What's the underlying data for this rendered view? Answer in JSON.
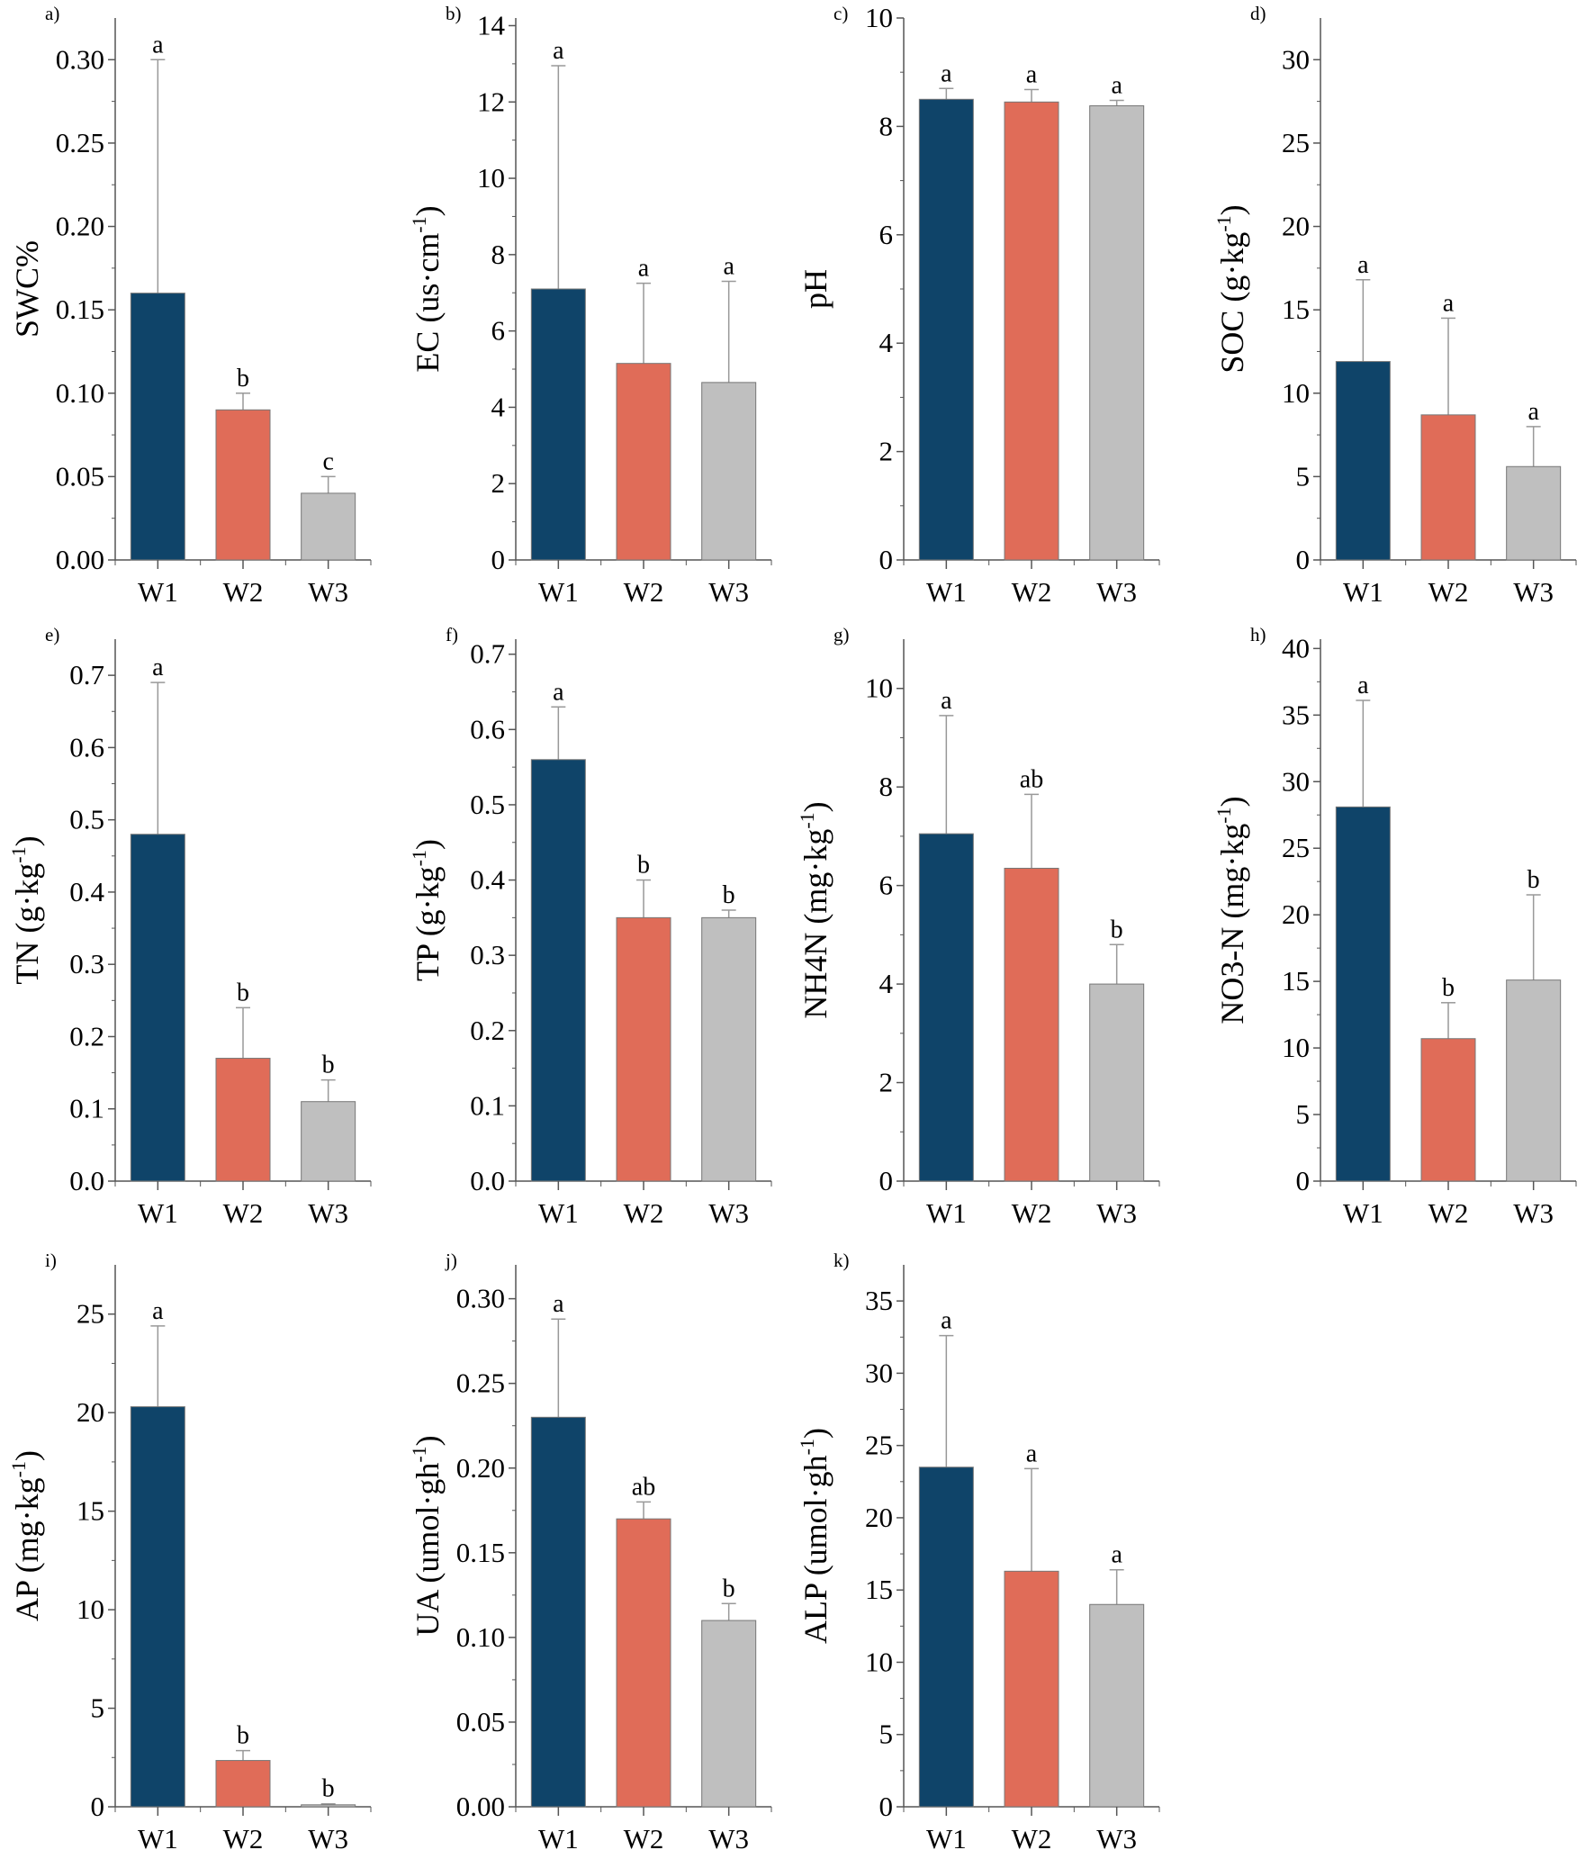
{
  "colors": {
    "W1": "#0f4469",
    "W2": "#e06c58",
    "W3": "#bfbfbf",
    "axis": "#555555",
    "error": "#999999"
  },
  "chart_data": [
    {
      "panel": "a)",
      "type": "bar",
      "categories": [
        "W1",
        "W2",
        "W3"
      ],
      "values": [
        0.16,
        0.09,
        0.04
      ],
      "error_upper": [
        0.3,
        0.1,
        0.05
      ],
      "letters": [
        "a",
        "b",
        "c"
      ],
      "ylabel": {
        "pre": "SWC%",
        "sup": "",
        "post": ""
      },
      "ylim": [
        0,
        0.325
      ],
      "ticks": [
        0.0,
        0.05,
        0.1,
        0.15,
        0.2,
        0.25,
        0.3
      ],
      "tick_labels": [
        "0.00",
        "0.05",
        "0.10",
        "0.15",
        "0.20",
        "0.25",
        "0.30"
      ]
    },
    {
      "panel": "b)",
      "type": "bar",
      "categories": [
        "W1",
        "W2",
        "W3"
      ],
      "values": [
        7.1,
        5.15,
        4.65
      ],
      "error_upper": [
        12.95,
        7.25,
        7.3
      ],
      "letters": [
        "a",
        "a",
        "a"
      ],
      "ylabel": {
        "pre": "EC (us·cm",
        "sup": "-1",
        "post": ")"
      },
      "ylim": [
        0,
        14.2
      ],
      "ticks": [
        0,
        2,
        4,
        6,
        8,
        10,
        12,
        14
      ],
      "tick_labels": [
        "0",
        "2",
        "4",
        "6",
        "8",
        "10",
        "12",
        "14"
      ]
    },
    {
      "panel": "c)",
      "type": "bar",
      "categories": [
        "W1",
        "W2",
        "W3"
      ],
      "values": [
        8.5,
        8.45,
        8.38
      ],
      "error_upper": [
        8.7,
        8.68,
        8.48
      ],
      "letters": [
        "a",
        "a",
        "a"
      ],
      "ylabel": {
        "pre": "pH",
        "sup": "",
        "post": ""
      },
      "ylim": [
        0,
        10
      ],
      "ticks": [
        0,
        2,
        4,
        6,
        8,
        10
      ],
      "tick_labels": [
        "0",
        "2",
        "4",
        "6",
        "8",
        "10"
      ]
    },
    {
      "panel": "d)",
      "type": "bar",
      "categories": [
        "W1",
        "W2",
        "W3"
      ],
      "values": [
        11.9,
        8.7,
        5.6
      ],
      "error_upper": [
        16.8,
        14.5,
        8.0
      ],
      "letters": [
        "a",
        "a",
        "a"
      ],
      "ylabel": {
        "pre": "SOC (g·kg",
        "sup": "-1",
        "post": ")"
      },
      "ylim": [
        0,
        32.5
      ],
      "ticks": [
        0,
        5,
        10,
        15,
        20,
        25,
        30
      ],
      "tick_labels": [
        "0",
        "5",
        "10",
        "15",
        "20",
        "25",
        "30"
      ]
    },
    {
      "panel": "e)",
      "type": "bar",
      "categories": [
        "W1",
        "W2",
        "W3"
      ],
      "values": [
        0.48,
        0.17,
        0.11
      ],
      "error_upper": [
        0.69,
        0.24,
        0.14
      ],
      "letters": [
        "a",
        "b",
        "b"
      ],
      "ylabel": {
        "pre": "TN (g·kg",
        "sup": "-1",
        "post": ")"
      },
      "ylim": [
        0,
        0.75
      ],
      "ticks": [
        0,
        0.1,
        0.2,
        0.3,
        0.4,
        0.5,
        0.6,
        0.7
      ],
      "tick_labels": [
        "0.0",
        "0.1",
        "0.2",
        "0.3",
        "0.4",
        "0.5",
        "0.6",
        "0.7"
      ]
    },
    {
      "panel": "f)",
      "type": "bar",
      "categories": [
        "W1",
        "W2",
        "W3"
      ],
      "values": [
        0.56,
        0.35,
        0.35
      ],
      "error_upper": [
        0.63,
        0.4,
        0.36
      ],
      "letters": [
        "a",
        "b",
        "b"
      ],
      "ylabel": {
        "pre": "TP (g·kg",
        "sup": "-1",
        "post": ")"
      },
      "ylim": [
        0,
        0.72
      ],
      "ticks": [
        0,
        0.1,
        0.2,
        0.3,
        0.4,
        0.5,
        0.6,
        0.7
      ],
      "tick_labels": [
        "0.0",
        "0.1",
        "0.2",
        "0.3",
        "0.4",
        "0.5",
        "0.6",
        "0.7"
      ]
    },
    {
      "panel": "g)",
      "type": "bar",
      "categories": [
        "W1",
        "W2",
        "W3"
      ],
      "values": [
        7.05,
        6.35,
        4.0
      ],
      "error_upper": [
        9.45,
        7.85,
        4.8
      ],
      "letters": [
        "a",
        "ab",
        "b"
      ],
      "ylabel": {
        "pre": "NH4N (mg·kg",
        "sup": "-1",
        "post": ")"
      },
      "ylim": [
        0,
        11
      ],
      "ticks": [
        0,
        2,
        4,
        6,
        8,
        10
      ],
      "tick_labels": [
        "0",
        "2",
        "4",
        "6",
        "8",
        "10"
      ]
    },
    {
      "panel": "h)",
      "type": "bar",
      "categories": [
        "W1",
        "W2",
        "W3"
      ],
      "values": [
        28.1,
        10.7,
        15.1
      ],
      "error_upper": [
        36.1,
        13.4,
        21.5
      ],
      "letters": [
        "a",
        "b",
        "b"
      ],
      "ylabel": {
        "pre": "NO3-N (mg·kg",
        "sup": "-1",
        "post": ")"
      },
      "ylim": [
        0,
        40.7
      ],
      "ticks": [
        0,
        5,
        10,
        15,
        20,
        25,
        30,
        35,
        40
      ],
      "tick_labels": [
        "0",
        "5",
        "10",
        "15",
        "20",
        "25",
        "30",
        "35",
        "40"
      ]
    },
    {
      "panel": "i)",
      "type": "bar",
      "categories": [
        "W1",
        "W2",
        "W3"
      ],
      "values": [
        20.3,
        2.35,
        0.1
      ],
      "error_upper": [
        24.4,
        2.85,
        0.15
      ],
      "letters": [
        "a",
        "b",
        "b"
      ],
      "ylabel": {
        "pre": "AP (mg·kg",
        "sup": "-1",
        "post": ")"
      },
      "ylim": [
        0,
        27.5
      ],
      "ticks": [
        0,
        5,
        10,
        15,
        20,
        25
      ],
      "tick_labels": [
        "0",
        "5",
        "10",
        "15",
        "20",
        "25"
      ]
    },
    {
      "panel": "j)",
      "type": "bar",
      "categories": [
        "W1",
        "W2",
        "W3"
      ],
      "values": [
        0.23,
        0.17,
        0.11
      ],
      "error_upper": [
        0.288,
        0.18,
        0.12
      ],
      "letters": [
        "a",
        "ab",
        "b"
      ],
      "ylabel": {
        "pre": "UA (umol·gh",
        "sup": "-1",
        "post": ")"
      },
      "ylim": [
        0,
        0.32
      ],
      "ticks": [
        0,
        0.05,
        0.1,
        0.15,
        0.2,
        0.25,
        0.3
      ],
      "tick_labels": [
        "0.00",
        "0.05",
        "0.10",
        "0.15",
        "0.20",
        "0.25",
        "0.30"
      ]
    },
    {
      "panel": "k)",
      "type": "bar",
      "categories": [
        "W1",
        "W2",
        "W3"
      ],
      "values": [
        23.5,
        16.3,
        14.0
      ],
      "error_upper": [
        32.6,
        23.4,
        16.4
      ],
      "letters": [
        "a",
        "a",
        "a"
      ],
      "ylabel": {
        "pre": "ALP (umol·gh",
        "sup": "-1",
        "post": ")"
      },
      "ylim": [
        0,
        37.5
      ],
      "ticks": [
        0,
        5,
        10,
        15,
        20,
        25,
        30,
        35
      ],
      "tick_labels": [
        "0",
        "5",
        "10",
        "15",
        "20",
        "25",
        "30",
        "35"
      ]
    }
  ]
}
